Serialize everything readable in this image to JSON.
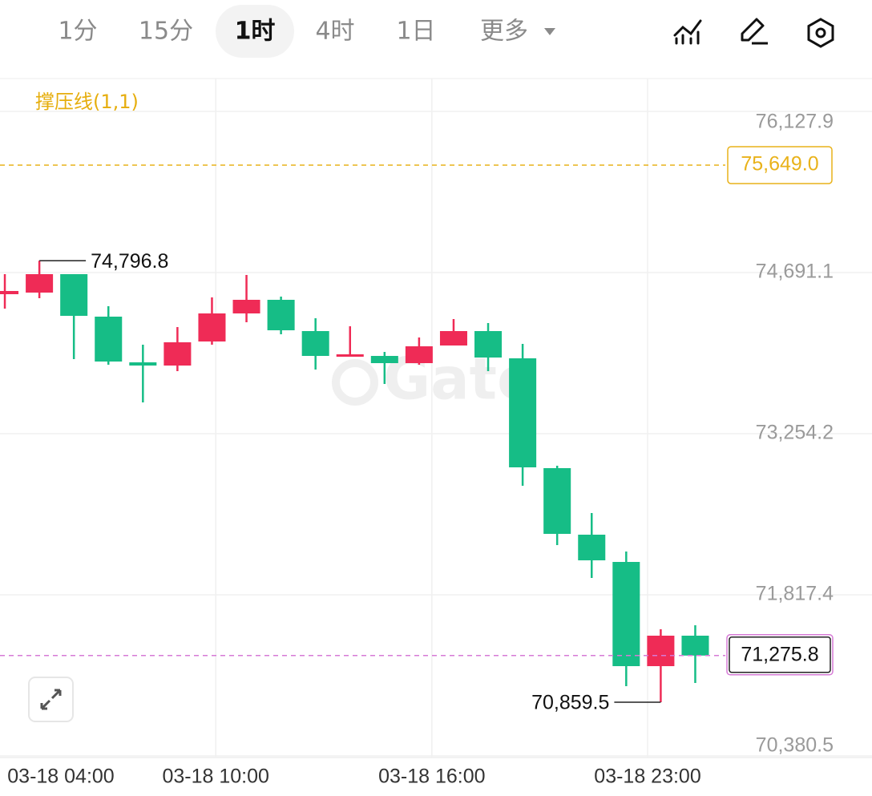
{
  "toolbar": {
    "tabs": [
      "1分",
      "15分",
      "1时",
      "4时",
      "1日",
      "更多"
    ],
    "active": 2
  },
  "chart_data": {
    "type": "candlestick",
    "indicator": "撑压线(1,1)",
    "watermark": "Gate",
    "categories": [
      null,
      null,
      null,
      null,
      null,
      null,
      null,
      null,
      null,
      null,
      null,
      null,
      null,
      null,
      null,
      null,
      null,
      null,
      null,
      null,
      null
    ],
    "open": [
      74498.1,
      74512.4,
      74676.8,
      74298.0,
      73890.5,
      73861.9,
      74076.4,
      74326.6,
      74448.1,
      74169.3,
      73940.6,
      73947.7,
      73883.4,
      74040.6,
      74169.3,
      73926.3,
      72947.0,
      72353.7,
      72110.7,
      71181.4,
      71453.1
    ],
    "high": [
      74676.8,
      74796.8,
      74676.8,
      74390.9,
      74047.8,
      74205.0,
      74469.5,
      74669.7,
      74476.7,
      74283.7,
      74212.2,
      73983.4,
      74112.1,
      74276.5,
      74240.8,
      74054.9,
      72968.4,
      72546.7,
      72203.6,
      71510.2,
      71546.0
    ],
    "low": [
      74369.4,
      74462.4,
      73919.1,
      73869.1,
      73533.1,
      73811.9,
      74047.8,
      74247.9,
      74140.7,
      73826.2,
      73940.6,
      73697.5,
      73869.1,
      74040.6,
      73811.9,
      72789.7,
      72260.8,
      71967.7,
      71002.7,
      70859.5,
      71031.3
    ],
    "close": [
      74526.7,
      74676.8,
      74305.1,
      73897.7,
      73861.9,
      74069.2,
      74326.6,
      74448.1,
      74176.4,
      73947.7,
      73962.0,
      73883.4,
      74033.5,
      74169.3,
      73933.4,
      72954.1,
      72360.9,
      72125.0,
      71181.4,
      71453.1,
      71275.8
    ],
    "up_color": "#ef2b56",
    "down_color": "#16bd86",
    "ylim": [
      70366.6,
      76421.0
    ],
    "yticks": [
      {
        "value": 70380.5,
        "label": "70,380.5"
      },
      {
        "value": 71817.4,
        "label": "71,817.4"
      },
      {
        "value": 73254.2,
        "label": "73,254.2"
      },
      {
        "value": 74691.1,
        "label": "74,691.1"
      },
      {
        "value": 76127.9,
        "label": "76,127.9"
      }
    ],
    "xlim": [
      -0.14,
      25.12
    ],
    "xticks": [
      {
        "value": -0.14,
        "label": "03-18 04:00"
      },
      {
        "value": 6.11,
        "label": "03-18 10:00"
      },
      {
        "value": 12.37,
        "label": "03-18 16:00"
      },
      {
        "value": 18.62,
        "label": "03-18 23:00"
      }
    ],
    "grid": true,
    "high_marker": {
      "value": 74796.8,
      "label": "74,796.8"
    },
    "low_marker": {
      "value": 70859.5,
      "label": "70,859.5"
    },
    "resistance_line": {
      "value": 75649.0,
      "label": "75,649.0",
      "color": "#e9b21a"
    },
    "last_price": {
      "value": 71275.8,
      "label": "71,275.8",
      "color": "#d67ad6"
    }
  }
}
